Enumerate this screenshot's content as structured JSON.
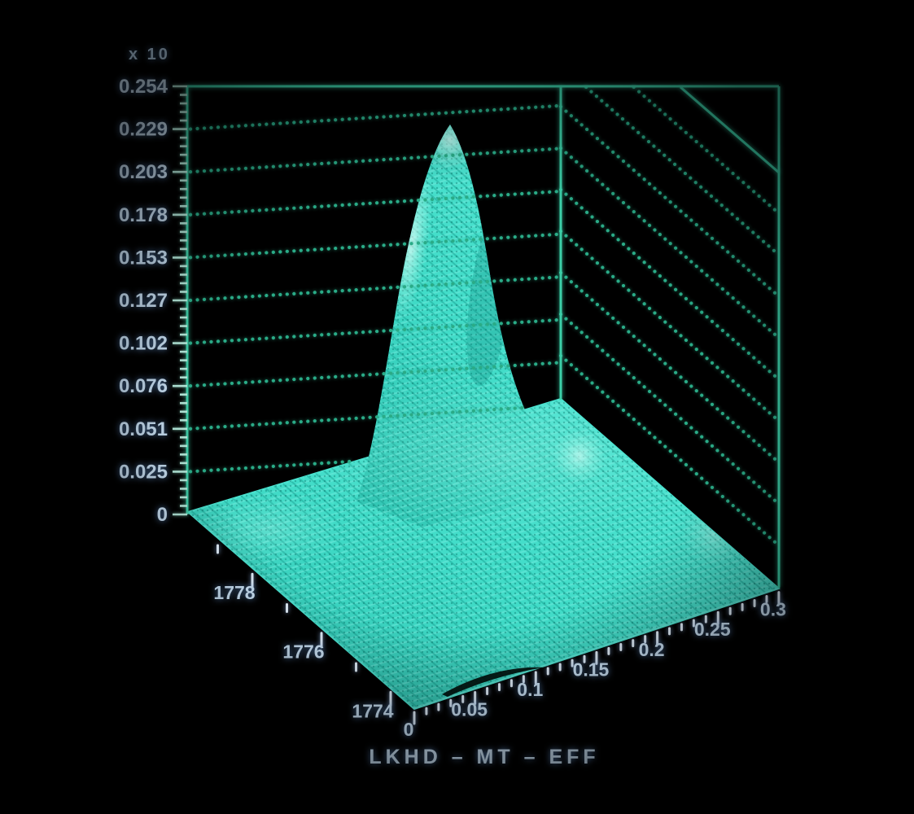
{
  "window": {
    "background": "#000000"
  },
  "chart_data": {
    "type": "3d-surface",
    "title": "LKHD – MT – EFF",
    "subtitle": "",
    "legend": null,
    "z_axis": {
      "multiplier": "x 10",
      "tick_labels": [
        "0.254",
        "0.229",
        "0.203",
        "0.178",
        "0.153",
        "0.127",
        "0.102",
        "0.076",
        "0.051",
        "0.025",
        "0"
      ],
      "range": [
        0,
        0.254
      ],
      "minor_ticks_per_interval": 4
    },
    "mt_axis": {
      "tick_labels": [
        "1778",
        "1776",
        "1774"
      ],
      "direction": "front-left edge, values decrease toward viewer",
      "minor_tick_step": 1
    },
    "eff_axis": {
      "tick_labels": [
        "0",
        "0.05",
        "0.1",
        "0.15",
        "0.2",
        "0.25",
        "0.3"
      ],
      "range": [
        0,
        0.3
      ],
      "minor_ticks_per_interval": 4
    },
    "surface": {
      "description": "single sharp gaussian-like likelihood peak rising from a flat skirt that covers the whole floor",
      "peak": {
        "mt": "≈1776.5",
        "eff": "≈0.1",
        "height": "≈0.23"
      },
      "floor_level": 0
    },
    "walls": {
      "left_wall": "dotted horizontal z-level gridlines from each labeled y tick to the back corner",
      "right_wall": "parallel dotted diagonal z-level gridlines, topmost line drawn solid"
    },
    "style": {
      "frame_line_color": "#3ccfa8",
      "grid_dot_color": "#2aab87",
      "surface_color": "#41dcc8",
      "surface_highlight": "#b9fff2",
      "label_color": "#cfe7fb",
      "background": "#000000"
    }
  }
}
